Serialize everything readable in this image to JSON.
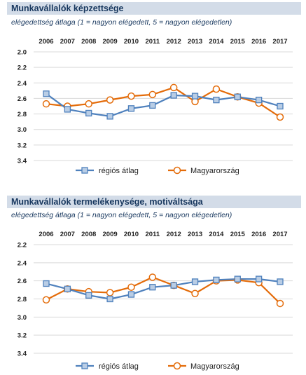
{
  "chart_data": [
    {
      "type": "line",
      "title": "Munkavállalók képzettsége",
      "subtitle": "elégedettség átlaga (1 = nagyon elégedett, 5 = nagyon elégedetlen)",
      "x": [
        "2006",
        "2007",
        "2008",
        "2009",
        "2010",
        "2011",
        "2012",
        "2013",
        "2014",
        "2015",
        "2016",
        "2017"
      ],
      "yticks": [
        "2.0",
        "2.2",
        "2.4",
        "2.6",
        "2.8",
        "3.0",
        "3.2",
        "3.4"
      ],
      "ylim": [
        2.0,
        3.4
      ],
      "y_inverted": true,
      "legend_position": "bottom",
      "series": [
        {
          "name": "régiós átlag",
          "marker": "square",
          "color": "#4f81bd",
          "marker_fill": "#b9cde5",
          "values": [
            2.54,
            2.74,
            2.79,
            2.83,
            2.73,
            2.69,
            2.56,
            2.57,
            2.62,
            2.58,
            2.62,
            2.7
          ]
        },
        {
          "name": "Magyarország",
          "marker": "circle",
          "color": "#e46c0a",
          "marker_fill": "#ffffff",
          "values": [
            2.67,
            2.7,
            2.67,
            2.62,
            2.57,
            2.55,
            2.46,
            2.64,
            2.48,
            2.58,
            2.66,
            2.84
          ]
        }
      ]
    },
    {
      "type": "line",
      "title": "Munkavállalók termelékenysége, motiváltsága",
      "subtitle": "elégedettség átlaga (1 = nagyon elégedett, 5 = nagyon elégedetlen)",
      "x": [
        "2006",
        "2007",
        "2008",
        "2009",
        "2010",
        "2011",
        "2012",
        "2013",
        "2014",
        "2015",
        "2016",
        "2017"
      ],
      "yticks": [
        "2.2",
        "2.4",
        "2.6",
        "2.8",
        "3.0",
        "3.2",
        "3.4"
      ],
      "ylim": [
        2.2,
        3.4
      ],
      "y_inverted": true,
      "legend_position": "bottom",
      "series": [
        {
          "name": "régiós átlag",
          "marker": "square",
          "color": "#4f81bd",
          "marker_fill": "#b9cde5",
          "values": [
            2.63,
            2.69,
            2.76,
            2.8,
            2.75,
            2.67,
            2.65,
            2.61,
            2.59,
            2.58,
            2.58,
            2.61
          ]
        },
        {
          "name": "Magyarország",
          "marker": "circle",
          "color": "#e46c0a",
          "marker_fill": "#ffffff",
          "values": [
            2.81,
            2.69,
            2.72,
            2.73,
            2.67,
            2.56,
            2.65,
            2.74,
            2.6,
            2.59,
            2.62,
            2.85
          ]
        }
      ]
    }
  ]
}
